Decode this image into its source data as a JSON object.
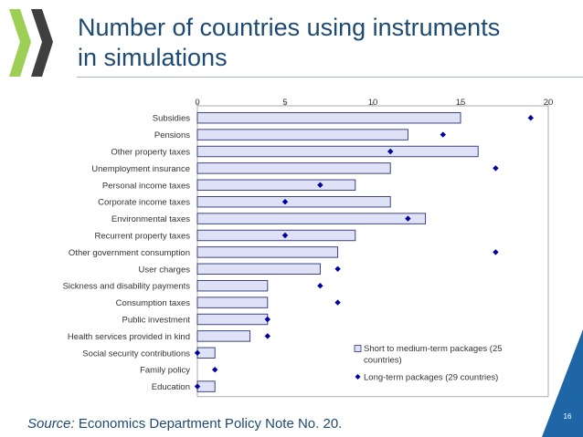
{
  "title": {
    "line1": "Number of countries using instruments",
    "line2": "in simulations"
  },
  "source": {
    "label": "Source:",
    "text": " Economics Department Policy Note No. 20."
  },
  "page_number": "16",
  "colors": {
    "title": "#1d4a73",
    "accent_green": "#8fc23f",
    "bar_fill": "#dfe1f6",
    "bar_stroke": "#2a3277",
    "marker": "#00009e",
    "corner_blue": "#1f66a6"
  },
  "chart_data": {
    "type": "bar",
    "orientation": "horizontal",
    "xlim": [
      0,
      20
    ],
    "xticks": [
      0,
      5,
      10,
      15,
      20
    ],
    "tick_labels": [
      "0",
      "5",
      "10",
      "15",
      "20"
    ],
    "grid": false,
    "legend_position": "lower-right",
    "categories": [
      "Subsidies",
      "Pensions",
      "Other property taxes",
      "Unemployment insurance",
      "Personal income taxes",
      "Corporate income taxes",
      "Environmental taxes",
      "Recurrent property taxes",
      "Other government consumption",
      "User charges",
      "Sickness and disability payments",
      "Consumption taxes",
      "Public investment",
      "Health services provided in kind",
      "Social security contributions",
      "Family policy",
      "Education"
    ],
    "series": [
      {
        "name": "Short to medium-term packages (25 countries)",
        "kind": "bar",
        "legend_lines": [
          "Short to medium-term packages (25",
          "countries)"
        ],
        "values": [
          15,
          12,
          16,
          11,
          9,
          11,
          13,
          9,
          8,
          7,
          4,
          4,
          4,
          3,
          1,
          0,
          1
        ]
      },
      {
        "name": "Long-term packages (29 countries)",
        "kind": "marker",
        "legend_lines": [
          "Long-term packages (29 countries)"
        ],
        "values": [
          19,
          14,
          11,
          17,
          7,
          5,
          12,
          5,
          17,
          8,
          7,
          8,
          4,
          4,
          0,
          1,
          0
        ]
      }
    ]
  }
}
